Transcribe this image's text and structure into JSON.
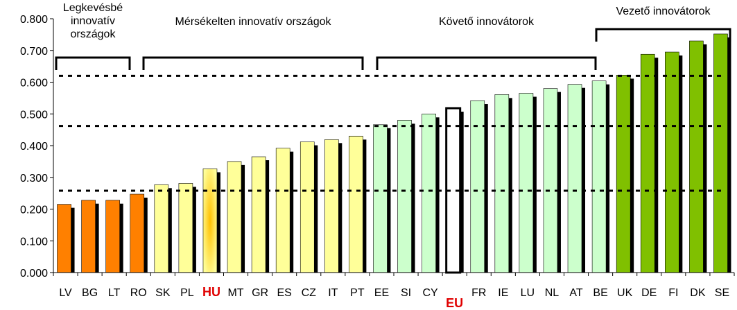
{
  "chart_data": {
    "type": "bar",
    "categories": [
      "LV",
      "BG",
      "LT",
      "RO",
      "SK",
      "PL",
      "HU",
      "MT",
      "GR",
      "ES",
      "CZ",
      "IT",
      "PT",
      "EE",
      "SI",
      "CY",
      "EU",
      "FR",
      "IE",
      "LU",
      "NL",
      "AT",
      "BE",
      "UK",
      "DE",
      "FI",
      "DK",
      "SE"
    ],
    "values": [
      0.215,
      0.228,
      0.228,
      0.247,
      0.277,
      0.281,
      0.327,
      0.35,
      0.365,
      0.392,
      0.412,
      0.419,
      0.43,
      0.466,
      0.48,
      0.5,
      0.518,
      0.542,
      0.561,
      0.565,
      0.58,
      0.593,
      0.604,
      0.622,
      0.688,
      0.695,
      0.73,
      0.752
    ],
    "highlighted_categories": [
      "HU",
      "EU"
    ],
    "ylim": [
      0,
      0.8
    ],
    "y_ticks": [
      "0.000",
      "0.100",
      "0.200",
      "0.300",
      "0.400",
      "0.500",
      "0.600",
      "0.700",
      "0.800"
    ],
    "y_tick_values": [
      0,
      0.1,
      0.2,
      0.3,
      0.4,
      0.5,
      0.6,
      0.7,
      0.8
    ],
    "threshold_lines": [
      0.258,
      0.462,
      0.62
    ],
    "groups": [
      {
        "label": "Legkevésbé\ninnovatív\nországok",
        "from": "LV",
        "to": "RO",
        "color": "#ff8000"
      },
      {
        "label": "Mérsékelten innovatív országok",
        "from": "SK",
        "to": "PT",
        "color": "#ffff99"
      },
      {
        "label": "Követő innovátorok",
        "from": "EE",
        "to": "BE",
        "color": "#ccffcc"
      },
      {
        "label": "Vezető innovátorok",
        "from": "UK",
        "to": "SE",
        "color": "#80c000"
      }
    ],
    "grid": false,
    "legend": "none"
  }
}
